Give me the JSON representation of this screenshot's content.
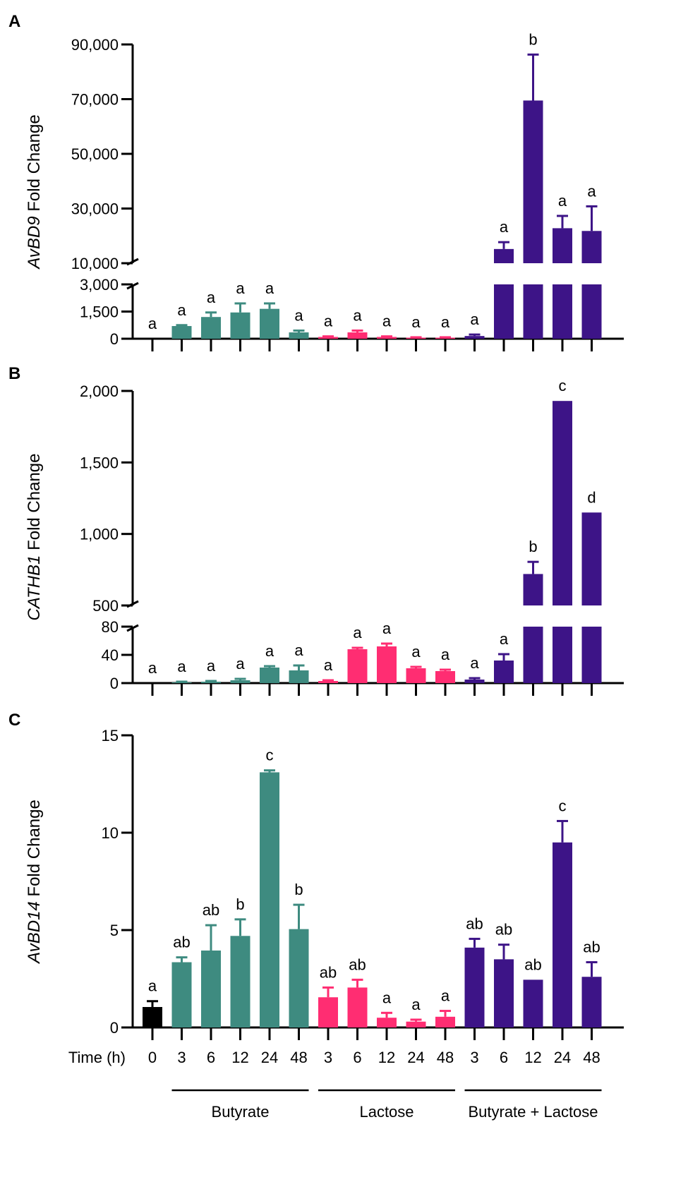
{
  "colors": {
    "control": "#000000",
    "butyrate": "#3e8b80",
    "lactose": "#ff2d72",
    "combo": "#3d1487"
  },
  "x_labels": {
    "time_axis": "Time (h)",
    "times": [
      "0",
      "3",
      "6",
      "12",
      "24",
      "48",
      "3",
      "6",
      "12",
      "24",
      "48",
      "3",
      "6",
      "12",
      "24",
      "48"
    ],
    "groups": [
      {
        "label": "Butyrate",
        "from": 1,
        "to": 5
      },
      {
        "label": "Lactose",
        "from": 6,
        "to": 10
      },
      {
        "label": "Butyrate + Lactose",
        "from": 11,
        "to": 15
      }
    ]
  },
  "chart_data": [
    {
      "panel": "A",
      "type": "bar",
      "ylabel_gene": "AvBD9",
      "ylabel_rest": " Fold Change",
      "broken_axis": true,
      "segments": [
        {
          "range": [
            0,
            3000
          ],
          "ticks": [
            0,
            1500,
            3000
          ],
          "tick_labels": [
            "0",
            "1,500",
            "3,000"
          ]
        },
        {
          "range": [
            10000,
            90000
          ],
          "ticks": [
            10000,
            30000,
            50000,
            70000,
            90000
          ],
          "tick_labels": [
            "10,000",
            "30,000",
            "50,000",
            "70,000",
            "90,000"
          ]
        }
      ],
      "values": [
        0,
        700,
        1200,
        1450,
        1650,
        350,
        100,
        350,
        100,
        60,
        60,
        150,
        15200,
        69500,
        22800,
        21800
      ],
      "errors": [
        0,
        50,
        250,
        500,
        300,
        100,
        30,
        100,
        30,
        20,
        20,
        80,
        2500,
        16800,
        4500,
        9000
      ],
      "letters": [
        "a",
        "a",
        "a",
        "a",
        "a",
        "a",
        "a",
        "a",
        "a",
        "a",
        "a",
        "a",
        "a",
        "b",
        "a",
        "a"
      ]
    },
    {
      "panel": "B",
      "type": "bar",
      "ylabel_gene": "CATHB1",
      "ylabel_rest": " Fold Change",
      "broken_axis": true,
      "segments": [
        {
          "range": [
            0,
            80
          ],
          "ticks": [
            0,
            40,
            80
          ],
          "tick_labels": [
            "0",
            "40",
            "80"
          ]
        },
        {
          "range": [
            500,
            2000
          ],
          "ticks": [
            500,
            1000,
            1500,
            2000
          ],
          "tick_labels": [
            "500",
            "1,000",
            "1,500",
            "2,000"
          ]
        }
      ],
      "values": [
        0,
        1,
        2,
        4,
        22,
        18,
        3,
        48,
        52,
        21,
        17,
        5,
        32,
        720,
        1930,
        1150
      ],
      "errors": [
        0,
        1,
        1,
        2,
        2,
        7,
        1,
        2,
        4,
        2,
        2,
        2,
        9,
        85,
        0,
        0
      ],
      "letters": [
        "a",
        "a",
        "a",
        "a",
        "a",
        "a",
        "a",
        "a",
        "a",
        "a",
        "a",
        "a",
        "a",
        "b",
        "c",
        "d"
      ]
    },
    {
      "panel": "C",
      "type": "bar",
      "ylabel_gene": "AvBD14",
      "ylabel_rest": " Fold Change",
      "broken_axis": false,
      "ylim": [
        0,
        15
      ],
      "ticks": [
        0,
        5,
        10,
        15
      ],
      "tick_labels": [
        "0",
        "5",
        "10",
        "15"
      ],
      "values": [
        1.05,
        3.35,
        3.95,
        4.7,
        13.1,
        5.05,
        1.55,
        2.05,
        0.5,
        0.3,
        0.55,
        4.1,
        3.5,
        2.45,
        9.5,
        2.6
      ],
      "errors": [
        0.3,
        0.25,
        1.3,
        0.85,
        0.1,
        1.25,
        0.5,
        0.4,
        0.25,
        0.1,
        0.3,
        0.45,
        0.75,
        0,
        1.1,
        0.75
      ],
      "letters": [
        "a",
        "ab",
        "ab",
        "b",
        "c",
        "b",
        "ab",
        "ab",
        "a",
        "a",
        "a",
        "ab",
        "ab",
        "ab",
        "c",
        "ab"
      ]
    }
  ]
}
